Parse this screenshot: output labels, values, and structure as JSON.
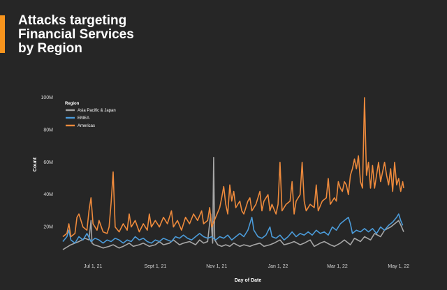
{
  "header": {
    "title_lines": [
      "Attacks targeting",
      "Financial Services",
      "by Region"
    ],
    "accent_color": "#f7941d"
  },
  "chart_data": {
    "type": "line",
    "title": "Attacks targeting Financial Services by Region",
    "xlabel": "Day of Date",
    "ylabel": "Count",
    "x_start": "2021-06-01",
    "x_end": "2022-05-08",
    "x_ticks": [
      {
        "label": "Jul 1, 21",
        "day": 30
      },
      {
        "label": "Sept 1, 21",
        "day": 92
      },
      {
        "label": "Nov 1, 21",
        "day": 153
      },
      {
        "label": "Jan 1, 22",
        "day": 214
      },
      {
        "label": "Mar 1, 22",
        "day": 273
      },
      {
        "label": "May 1, 22",
        "day": 334
      }
    ],
    "y_ticks": [
      {
        "label": "20M",
        "value": 20
      },
      {
        "label": "40M",
        "value": 40
      },
      {
        "label": "60M",
        "value": 60
      },
      {
        "label": "80M",
        "value": 80
      },
      {
        "label": "100M",
        "value": 100
      }
    ],
    "ylim": [
      0,
      100
    ],
    "y_unit": "M",
    "grid": false,
    "legend_title": "Region",
    "legend_position": "top-left",
    "series": [
      {
        "name": "Asia Pacific & Japan",
        "color": "#a6a6a6",
        "points": [
          [
            0,
            6
          ],
          [
            8,
            9
          ],
          [
            16,
            11
          ],
          [
            22,
            13
          ],
          [
            26,
            12
          ],
          [
            28,
            24
          ],
          [
            29,
            10
          ],
          [
            31,
            9
          ],
          [
            36,
            8
          ],
          [
            40,
            7
          ],
          [
            46,
            8
          ],
          [
            50,
            9
          ],
          [
            56,
            7
          ],
          [
            60,
            8
          ],
          [
            66,
            10
          ],
          [
            70,
            8
          ],
          [
            76,
            9
          ],
          [
            80,
            10
          ],
          [
            86,
            8
          ],
          [
            92,
            9
          ],
          [
            96,
            11
          ],
          [
            100,
            9
          ],
          [
            106,
            10
          ],
          [
            110,
            12
          ],
          [
            116,
            9
          ],
          [
            120,
            10
          ],
          [
            126,
            11
          ],
          [
            132,
            9
          ],
          [
            136,
            12
          ],
          [
            140,
            10
          ],
          [
            144,
            11
          ],
          [
            147,
            28
          ],
          [
            149,
            10
          ],
          [
            150,
            63
          ],
          [
            151,
            12
          ],
          [
            154,
            9
          ],
          [
            158,
            8
          ],
          [
            162,
            9
          ],
          [
            166,
            8
          ],
          [
            170,
            10
          ],
          [
            176,
            8
          ],
          [
            180,
            9
          ],
          [
            186,
            8
          ],
          [
            190,
            9
          ],
          [
            196,
            10
          ],
          [
            200,
            8
          ],
          [
            206,
            9
          ],
          [
            210,
            10
          ],
          [
            216,
            12
          ],
          [
            220,
            9
          ],
          [
            226,
            10
          ],
          [
            230,
            11
          ],
          [
            236,
            9
          ],
          [
            240,
            10
          ],
          [
            246,
            12
          ],
          [
            250,
            8
          ],
          [
            256,
            10
          ],
          [
            260,
            11
          ],
          [
            266,
            9
          ],
          [
            270,
            8
          ],
          [
            276,
            10
          ],
          [
            280,
            12
          ],
          [
            286,
            9
          ],
          [
            290,
            13
          ],
          [
            296,
            11
          ],
          [
            300,
            14
          ],
          [
            306,
            12
          ],
          [
            310,
            16
          ],
          [
            316,
            14
          ],
          [
            320,
            18
          ],
          [
            326,
            20
          ],
          [
            330,
            22
          ],
          [
            334,
            24
          ],
          [
            337,
            20
          ],
          [
            339,
            17
          ]
        ]
      },
      {
        "name": "EMEA",
        "color": "#4b9bd9",
        "points": [
          [
            0,
            11
          ],
          [
            4,
            14
          ],
          [
            6,
            18
          ],
          [
            8,
            12
          ],
          [
            12,
            10
          ],
          [
            16,
            14
          ],
          [
            20,
            12
          ],
          [
            24,
            16
          ],
          [
            28,
            11
          ],
          [
            32,
            13
          ],
          [
            36,
            12
          ],
          [
            40,
            10
          ],
          [
            44,
            12
          ],
          [
            48,
            11
          ],
          [
            52,
            13
          ],
          [
            56,
            12
          ],
          [
            60,
            10
          ],
          [
            64,
            12
          ],
          [
            68,
            11
          ],
          [
            72,
            14
          ],
          [
            76,
            12
          ],
          [
            80,
            13
          ],
          [
            84,
            11
          ],
          [
            88,
            10
          ],
          [
            92,
            12
          ],
          [
            96,
            11
          ],
          [
            100,
            13
          ],
          [
            104,
            12
          ],
          [
            108,
            11
          ],
          [
            112,
            14
          ],
          [
            116,
            13
          ],
          [
            120,
            15
          ],
          [
            124,
            13
          ],
          [
            128,
            12
          ],
          [
            132,
            14
          ],
          [
            136,
            16
          ],
          [
            140,
            14
          ],
          [
            144,
            13
          ],
          [
            148,
            14
          ],
          [
            152,
            12
          ],
          [
            156,
            14
          ],
          [
            160,
            13
          ],
          [
            164,
            15
          ],
          [
            168,
            12
          ],
          [
            172,
            14
          ],
          [
            176,
            16
          ],
          [
            180,
            14
          ],
          [
            184,
            18
          ],
          [
            188,
            26
          ],
          [
            190,
            18
          ],
          [
            194,
            14
          ],
          [
            198,
            13
          ],
          [
            202,
            15
          ],
          [
            206,
            20
          ],
          [
            208,
            14
          ],
          [
            212,
            13
          ],
          [
            216,
            15
          ],
          [
            220,
            12
          ],
          [
            224,
            14
          ],
          [
            228,
            17
          ],
          [
            232,
            14
          ],
          [
            236,
            16
          ],
          [
            240,
            15
          ],
          [
            244,
            17
          ],
          [
            248,
            15
          ],
          [
            252,
            18
          ],
          [
            256,
            16
          ],
          [
            260,
            17
          ],
          [
            264,
            15
          ],
          [
            268,
            20
          ],
          [
            272,
            18
          ],
          [
            276,
            22
          ],
          [
            280,
            24
          ],
          [
            284,
            26
          ],
          [
            286,
            22
          ],
          [
            288,
            16
          ],
          [
            292,
            18
          ],
          [
            296,
            17
          ],
          [
            300,
            19
          ],
          [
            304,
            17
          ],
          [
            308,
            19
          ],
          [
            312,
            16
          ],
          [
            316,
            20
          ],
          [
            320,
            18
          ],
          [
            324,
            21
          ],
          [
            328,
            23
          ],
          [
            332,
            26
          ],
          [
            334,
            28
          ],
          [
            336,
            24
          ],
          [
            338,
            21
          ]
        ]
      },
      {
        "name": "Americas",
        "color": "#ee8a3c",
        "points": [
          [
            0,
            14
          ],
          [
            4,
            16
          ],
          [
            6,
            22
          ],
          [
            8,
            14
          ],
          [
            12,
            16
          ],
          [
            14,
            26
          ],
          [
            16,
            28
          ],
          [
            18,
            24
          ],
          [
            20,
            20
          ],
          [
            24,
            18
          ],
          [
            26,
            30
          ],
          [
            28,
            38
          ],
          [
            30,
            22
          ],
          [
            34,
            18
          ],
          [
            36,
            24
          ],
          [
            40,
            17
          ],
          [
            44,
            16
          ],
          [
            46,
            20
          ],
          [
            48,
            35
          ],
          [
            50,
            54
          ],
          [
            52,
            20
          ],
          [
            56,
            17
          ],
          [
            60,
            22
          ],
          [
            64,
            18
          ],
          [
            66,
            28
          ],
          [
            68,
            20
          ],
          [
            72,
            24
          ],
          [
            76,
            17
          ],
          [
            80,
            22
          ],
          [
            84,
            18
          ],
          [
            86,
            28
          ],
          [
            88,
            20
          ],
          [
            92,
            24
          ],
          [
            96,
            20
          ],
          [
            100,
            26
          ],
          [
            104,
            22
          ],
          [
            108,
            30
          ],
          [
            110,
            20
          ],
          [
            114,
            24
          ],
          [
            118,
            18
          ],
          [
            122,
            26
          ],
          [
            126,
            22
          ],
          [
            130,
            28
          ],
          [
            134,
            24
          ],
          [
            138,
            30
          ],
          [
            140,
            22
          ],
          [
            144,
            24
          ],
          [
            146,
            32
          ],
          [
            148,
            20
          ],
          [
            152,
            26
          ],
          [
            156,
            32
          ],
          [
            158,
            38
          ],
          [
            160,
            45
          ],
          [
            162,
            34
          ],
          [
            164,
            28
          ],
          [
            166,
            46
          ],
          [
            168,
            36
          ],
          [
            170,
            42
          ],
          [
            172,
            32
          ],
          [
            176,
            36
          ],
          [
            178,
            30
          ],
          [
            180,
            28
          ],
          [
            184,
            36
          ],
          [
            186,
            38
          ],
          [
            188,
            30
          ],
          [
            192,
            34
          ],
          [
            196,
            42
          ],
          [
            198,
            30
          ],
          [
            200,
            36
          ],
          [
            204,
            40
          ],
          [
            206,
            30
          ],
          [
            208,
            34
          ],
          [
            212,
            28
          ],
          [
            214,
            34
          ],
          [
            216,
            60
          ],
          [
            218,
            30
          ],
          [
            222,
            34
          ],
          [
            226,
            36
          ],
          [
            228,
            48
          ],
          [
            230,
            28
          ],
          [
            232,
            36
          ],
          [
            236,
            40
          ],
          [
            238,
            60
          ],
          [
            240,
            36
          ],
          [
            242,
            30
          ],
          [
            246,
            34
          ],
          [
            250,
            32
          ],
          [
            252,
            46
          ],
          [
            254,
            30
          ],
          [
            258,
            36
          ],
          [
            262,
            38
          ],
          [
            264,
            50
          ],
          [
            266,
            34
          ],
          [
            270,
            38
          ],
          [
            272,
            36
          ],
          [
            274,
            48
          ],
          [
            276,
            44
          ],
          [
            278,
            42
          ],
          [
            280,
            48
          ],
          [
            282,
            46
          ],
          [
            284,
            40
          ],
          [
            286,
            52
          ],
          [
            288,
            56
          ],
          [
            290,
            62
          ],
          [
            292,
            56
          ],
          [
            294,
            64
          ],
          [
            296,
            48
          ],
          [
            298,
            44
          ],
          [
            300,
            100
          ],
          [
            302,
            52
          ],
          [
            304,
            60
          ],
          [
            306,
            44
          ],
          [
            308,
            58
          ],
          [
            310,
            44
          ],
          [
            312,
            52
          ],
          [
            314,
            60
          ],
          [
            316,
            48
          ],
          [
            318,
            54
          ],
          [
            320,
            60
          ],
          [
            322,
            52
          ],
          [
            324,
            46
          ],
          [
            326,
            56
          ],
          [
            328,
            42
          ],
          [
            330,
            60
          ],
          [
            332,
            46
          ],
          [
            334,
            50
          ],
          [
            336,
            42
          ],
          [
            338,
            48
          ],
          [
            339,
            44
          ]
        ]
      }
    ]
  }
}
